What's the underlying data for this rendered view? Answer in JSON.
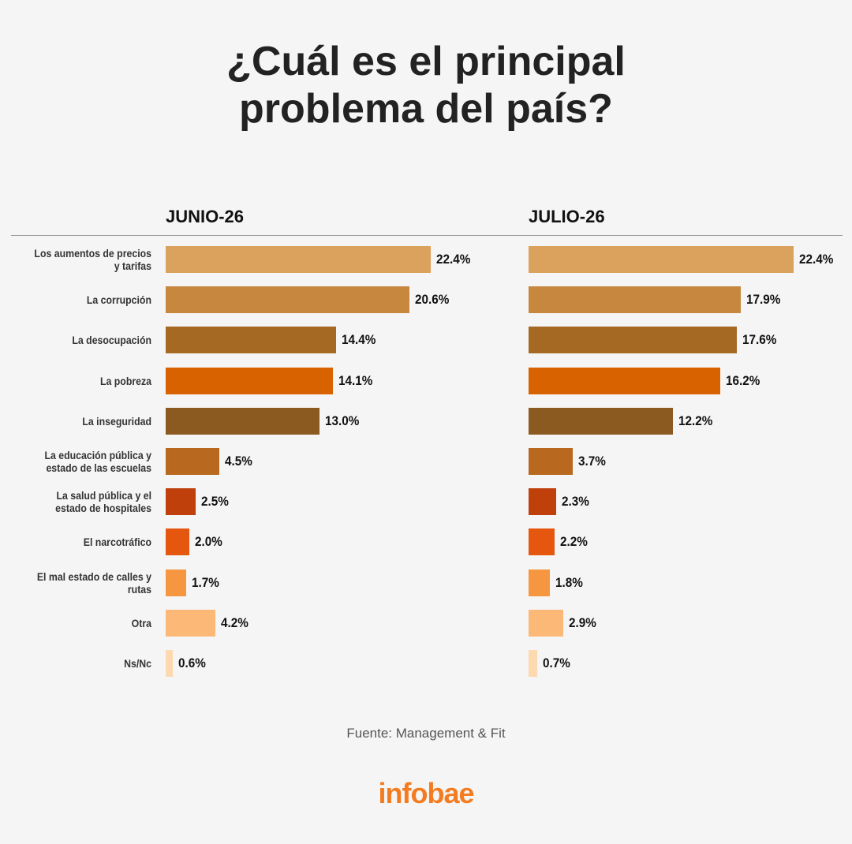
{
  "title_lines": [
    "¿Cuál es el principal",
    "problema del país?"
  ],
  "source": "Fuente: Management & Fit",
  "logo": "infobae",
  "chart_data": {
    "type": "bar",
    "orientation": "horizontal",
    "categories": [
      "Los aumentos de precios y tarifas",
      "La corrupción",
      "La desocupación",
      "La pobreza",
      "La inseguridad",
      "La educación pública y estado de las escuelas",
      "La salud pública y el estado de hospitales",
      "El narcotráfico",
      "El mal estado de calles y rutas",
      "Otra",
      "Ns/Nc"
    ],
    "category_lines": [
      [
        "Los aumentos de precios",
        "y tarifas"
      ],
      [
        "La corrupción"
      ],
      [
        "La desocupación"
      ],
      [
        "La pobreza"
      ],
      [
        "La inseguridad"
      ],
      [
        "La educación pública y",
        "estado de las escuelas"
      ],
      [
        "La salud pública y el",
        "estado de hospitales"
      ],
      [
        "El narcotráfico"
      ],
      [
        "El mal estado de calles y",
        "rutas"
      ],
      [
        "Otra"
      ],
      [
        "Ns/Nc"
      ]
    ],
    "colors": [
      "#dba25e",
      "#c7873f",
      "#a66924",
      "#d96200",
      "#8b5a20",
      "#b8691f",
      "#c0400c",
      "#e5560f",
      "#f79640",
      "#fbb877",
      "#fcd9ae"
    ],
    "series": [
      {
        "name": "JUNIO-26",
        "values": [
          22.4,
          20.6,
          14.4,
          14.1,
          13.0,
          4.5,
          2.5,
          2.0,
          1.7,
          4.2,
          0.6
        ],
        "labels": [
          "22.4%",
          "20.6%",
          "14.4%",
          "14.1%",
          "13.0%",
          "4.5%",
          "2.5%",
          "2.0%",
          "1.7%",
          "4.2%",
          "0.6%"
        ]
      },
      {
        "name": "JULIO-26",
        "values": [
          22.4,
          17.9,
          17.6,
          16.2,
          12.2,
          3.7,
          2.3,
          2.2,
          1.8,
          2.9,
          0.7
        ],
        "labels": [
          "22.4%",
          "17.9%",
          "17.6%",
          "16.2%",
          "12.2%",
          "3.7%",
          "2.3%",
          "2.2%",
          "1.8%",
          "2.9%",
          "0.7%"
        ]
      }
    ],
    "xlim": [
      0,
      22.4
    ],
    "grid": false,
    "legend": "none"
  }
}
